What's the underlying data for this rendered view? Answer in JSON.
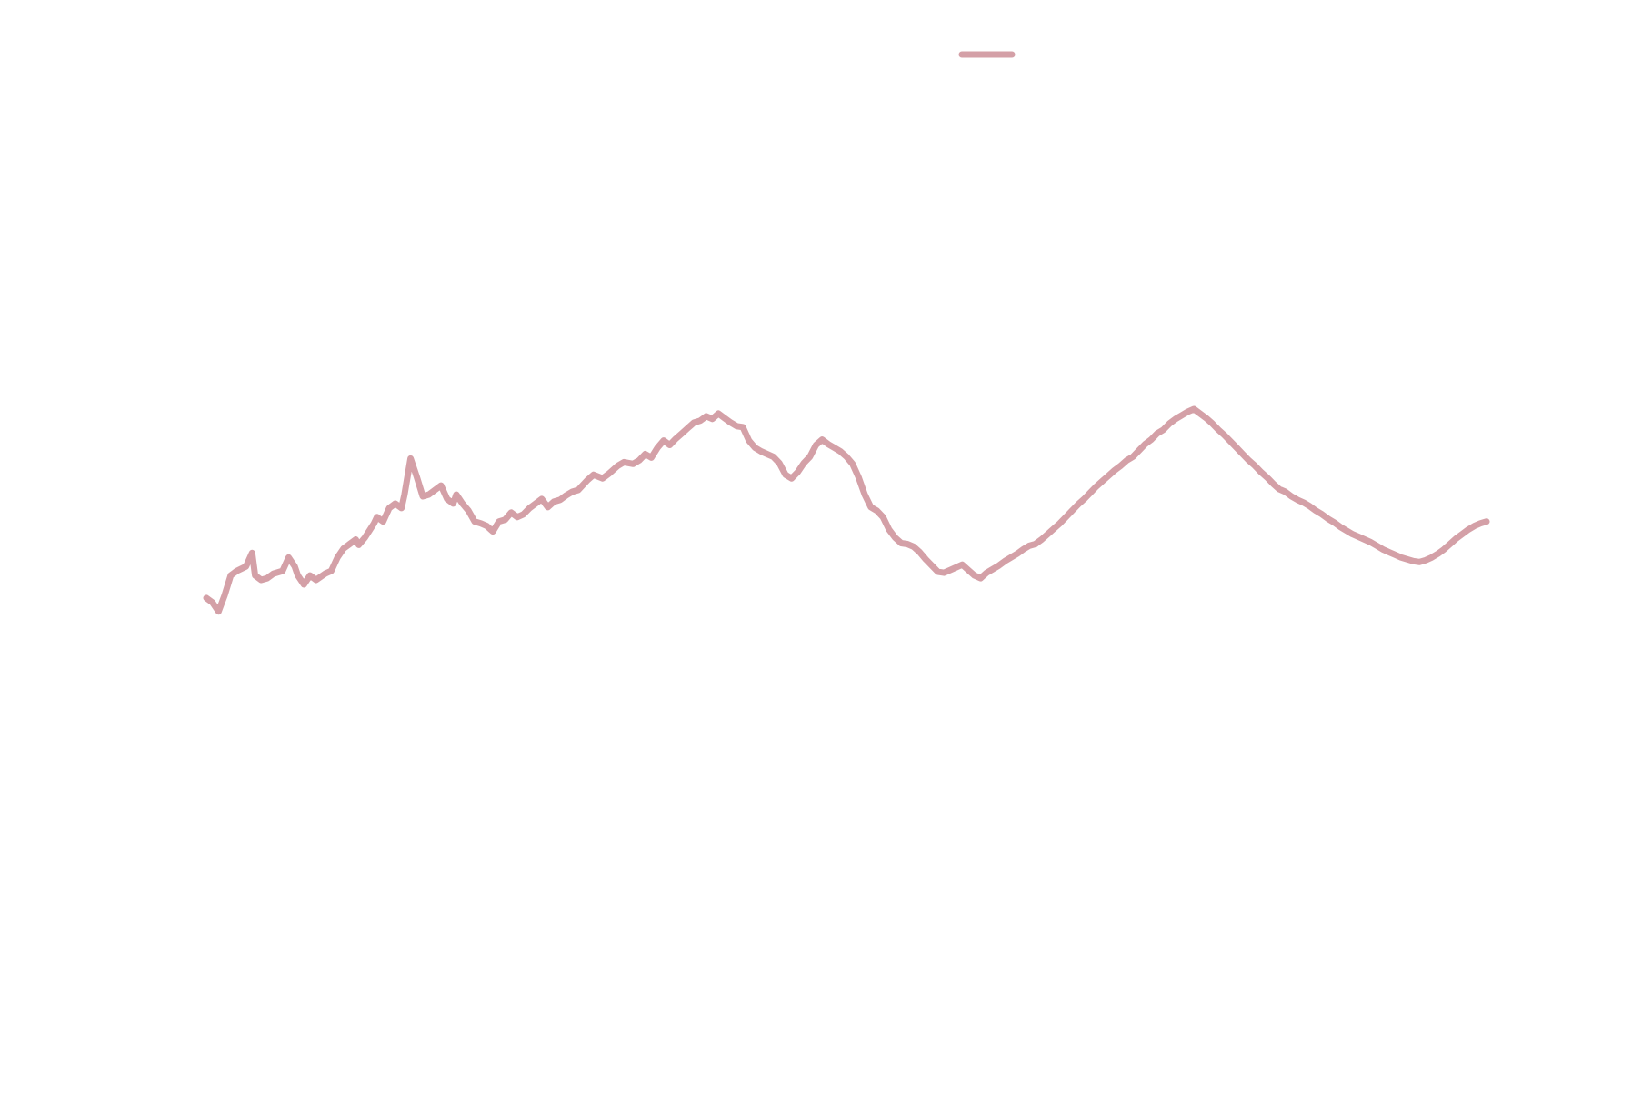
{
  "chart_data": {
    "type": "line",
    "title": "",
    "xlabel": "",
    "ylabel": "",
    "grid": false,
    "legend": {
      "placement": "top-center",
      "entries": [
        ""
      ]
    },
    "xlim": [
      0,
      420
    ],
    "ylim": [
      0,
      100
    ],
    "colors": {
      "series": "#d4a0a7"
    },
    "series": [
      {
        "name": "",
        "color": "#d4a0a7",
        "points": [
          [
            0,
            28.5
          ],
          [
            2,
            28
          ],
          [
            4,
            27
          ],
          [
            6,
            28.8
          ],
          [
            8,
            31
          ],
          [
            10,
            31.5
          ],
          [
            13,
            32
          ],
          [
            15,
            33.5
          ],
          [
            16,
            31
          ],
          [
            18,
            30.5
          ],
          [
            20,
            30.7
          ],
          [
            22,
            31.2
          ],
          [
            25,
            31.5
          ],
          [
            27,
            33
          ],
          [
            29,
            32
          ],
          [
            30,
            31
          ],
          [
            32,
            30
          ],
          [
            34,
            31
          ],
          [
            36,
            30.5
          ],
          [
            39,
            31.2
          ],
          [
            41,
            31.5
          ],
          [
            43,
            33
          ],
          [
            45,
            34
          ],
          [
            47,
            34.5
          ],
          [
            49,
            35
          ],
          [
            50,
            34.4
          ],
          [
            52,
            35.2
          ],
          [
            55,
            36.8
          ],
          [
            56,
            37.5
          ],
          [
            58,
            37
          ],
          [
            60,
            38.5
          ],
          [
            62,
            39
          ],
          [
            64,
            38.5
          ],
          [
            65,
            40
          ],
          [
            67,
            44
          ],
          [
            69,
            42
          ],
          [
            71,
            39.8
          ],
          [
            73,
            40
          ],
          [
            75,
            40.5
          ],
          [
            77,
            41
          ],
          [
            79,
            39.5
          ],
          [
            81,
            39
          ],
          [
            82,
            40
          ],
          [
            84,
            39
          ],
          [
            86,
            38.2
          ],
          [
            88,
            37
          ],
          [
            90,
            36.8
          ],
          [
            92,
            36.5
          ],
          [
            94,
            35.9
          ],
          [
            96,
            37
          ],
          [
            98,
            37.2
          ],
          [
            100,
            38
          ],
          [
            102,
            37.5
          ],
          [
            104,
            37.8
          ],
          [
            106,
            38.5
          ],
          [
            108,
            39
          ],
          [
            110,
            39.5
          ],
          [
            112,
            38.6
          ],
          [
            114,
            39.2
          ],
          [
            116,
            39.4
          ],
          [
            118,
            39.9
          ],
          [
            120,
            40.3
          ],
          [
            122,
            40.5
          ],
          [
            125,
            41.6
          ],
          [
            127,
            42.2
          ],
          [
            130,
            41.8
          ],
          [
            132,
            42.3
          ],
          [
            135,
            43.2
          ],
          [
            137,
            43.6
          ],
          [
            140,
            43.4
          ],
          [
            142,
            43.8
          ],
          [
            144,
            44.5
          ],
          [
            146,
            44.1
          ],
          [
            148,
            45.2
          ],
          [
            150,
            46
          ],
          [
            152,
            45.5
          ],
          [
            154,
            46.2
          ],
          [
            156,
            46.8
          ],
          [
            158,
            47.4
          ],
          [
            160,
            48
          ],
          [
            162,
            48.2
          ],
          [
            164,
            48.7
          ],
          [
            166,
            48.4
          ],
          [
            168,
            49
          ],
          [
            170,
            48.5
          ],
          [
            172,
            48
          ],
          [
            174,
            47.6
          ],
          [
            176,
            47.5
          ],
          [
            178,
            46
          ],
          [
            180,
            45.2
          ],
          [
            182,
            44.8
          ],
          [
            184,
            44.5
          ],
          [
            186,
            44.2
          ],
          [
            188,
            43.5
          ],
          [
            190,
            42.2
          ],
          [
            192,
            41.8
          ],
          [
            194,
            42.5
          ],
          [
            196,
            43.5
          ],
          [
            198,
            44.2
          ],
          [
            200,
            45.5
          ],
          [
            202,
            46.1
          ],
          [
            204,
            45.6
          ],
          [
            206,
            45.2
          ],
          [
            208,
            44.8
          ],
          [
            210,
            44.2
          ],
          [
            212,
            43.4
          ],
          [
            214,
            41.9
          ],
          [
            216,
            40
          ],
          [
            218,
            38.6
          ],
          [
            220,
            38.2
          ],
          [
            222,
            37.5
          ],
          [
            224,
            36.1
          ],
          [
            226,
            35.2
          ],
          [
            228,
            34.6
          ],
          [
            230,
            34.5
          ],
          [
            232,
            34.2
          ],
          [
            234,
            33.6
          ],
          [
            236,
            32.8
          ],
          [
            238,
            32.1
          ],
          [
            240,
            31.4
          ],
          [
            242,
            31.3
          ],
          [
            244,
            31.6
          ],
          [
            246,
            31.9
          ],
          [
            248,
            32.2
          ],
          [
            250,
            31.6
          ],
          [
            252,
            31
          ],
          [
            254,
            30.7
          ],
          [
            256,
            31.3
          ],
          [
            258,
            31.7
          ],
          [
            260,
            32.1
          ],
          [
            262,
            32.6
          ],
          [
            264,
            33
          ],
          [
            266,
            33.4
          ],
          [
            268,
            33.9
          ],
          [
            270,
            34.3
          ],
          [
            272,
            34.5
          ],
          [
            274,
            35
          ],
          [
            276,
            35.6
          ],
          [
            278,
            36.2
          ],
          [
            280,
            36.8
          ],
          [
            282,
            37.5
          ],
          [
            284,
            38.2
          ],
          [
            286,
            38.9
          ],
          [
            288,
            39.5
          ],
          [
            290,
            40.2
          ],
          [
            292,
            40.9
          ],
          [
            294,
            41.5
          ],
          [
            296,
            42.1
          ],
          [
            298,
            42.7
          ],
          [
            300,
            43.2
          ],
          [
            302,
            43.8
          ],
          [
            304,
            44.2
          ],
          [
            306,
            44.9
          ],
          [
            308,
            45.6
          ],
          [
            310,
            46.1
          ],
          [
            312,
            46.8
          ],
          [
            314,
            47.2
          ],
          [
            316,
            47.9
          ],
          [
            318,
            48.4
          ],
          [
            320,
            48.8
          ],
          [
            322,
            49.2
          ],
          [
            324,
            49.5
          ],
          [
            326,
            49
          ],
          [
            328,
            48.5
          ],
          [
            330,
            47.9
          ],
          [
            332,
            47.2
          ],
          [
            334,
            46.6
          ],
          [
            336,
            45.9
          ],
          [
            338,
            45.2
          ],
          [
            340,
            44.5
          ],
          [
            342,
            43.8
          ],
          [
            344,
            43.2
          ],
          [
            346,
            42.5
          ],
          [
            348,
            41.9
          ],
          [
            350,
            41.2
          ],
          [
            352,
            40.6
          ],
          [
            354,
            40.3
          ],
          [
            356,
            39.8
          ],
          [
            358,
            39.4
          ],
          [
            360,
            39.1
          ],
          [
            362,
            38.7
          ],
          [
            364,
            38.2
          ],
          [
            366,
            37.8
          ],
          [
            368,
            37.3
          ],
          [
            370,
            36.9
          ],
          [
            372,
            36.4
          ],
          [
            374,
            36
          ],
          [
            376,
            35.6
          ],
          [
            378,
            35.3
          ],
          [
            380,
            35
          ],
          [
            382,
            34.7
          ],
          [
            384,
            34.3
          ],
          [
            386,
            33.9
          ],
          [
            388,
            33.6
          ],
          [
            390,
            33.3
          ],
          [
            392,
            33
          ],
          [
            394,
            32.8
          ],
          [
            396,
            32.6
          ],
          [
            398,
            32.5
          ],
          [
            400,
            32.7
          ],
          [
            402,
            33
          ],
          [
            404,
            33.4
          ],
          [
            406,
            33.9
          ],
          [
            408,
            34.5
          ],
          [
            410,
            35.1
          ],
          [
            412,
            35.6
          ],
          [
            414,
            36.1
          ],
          [
            416,
            36.5
          ],
          [
            418,
            36.8
          ],
          [
            420,
            37
          ]
        ]
      }
    ]
  }
}
